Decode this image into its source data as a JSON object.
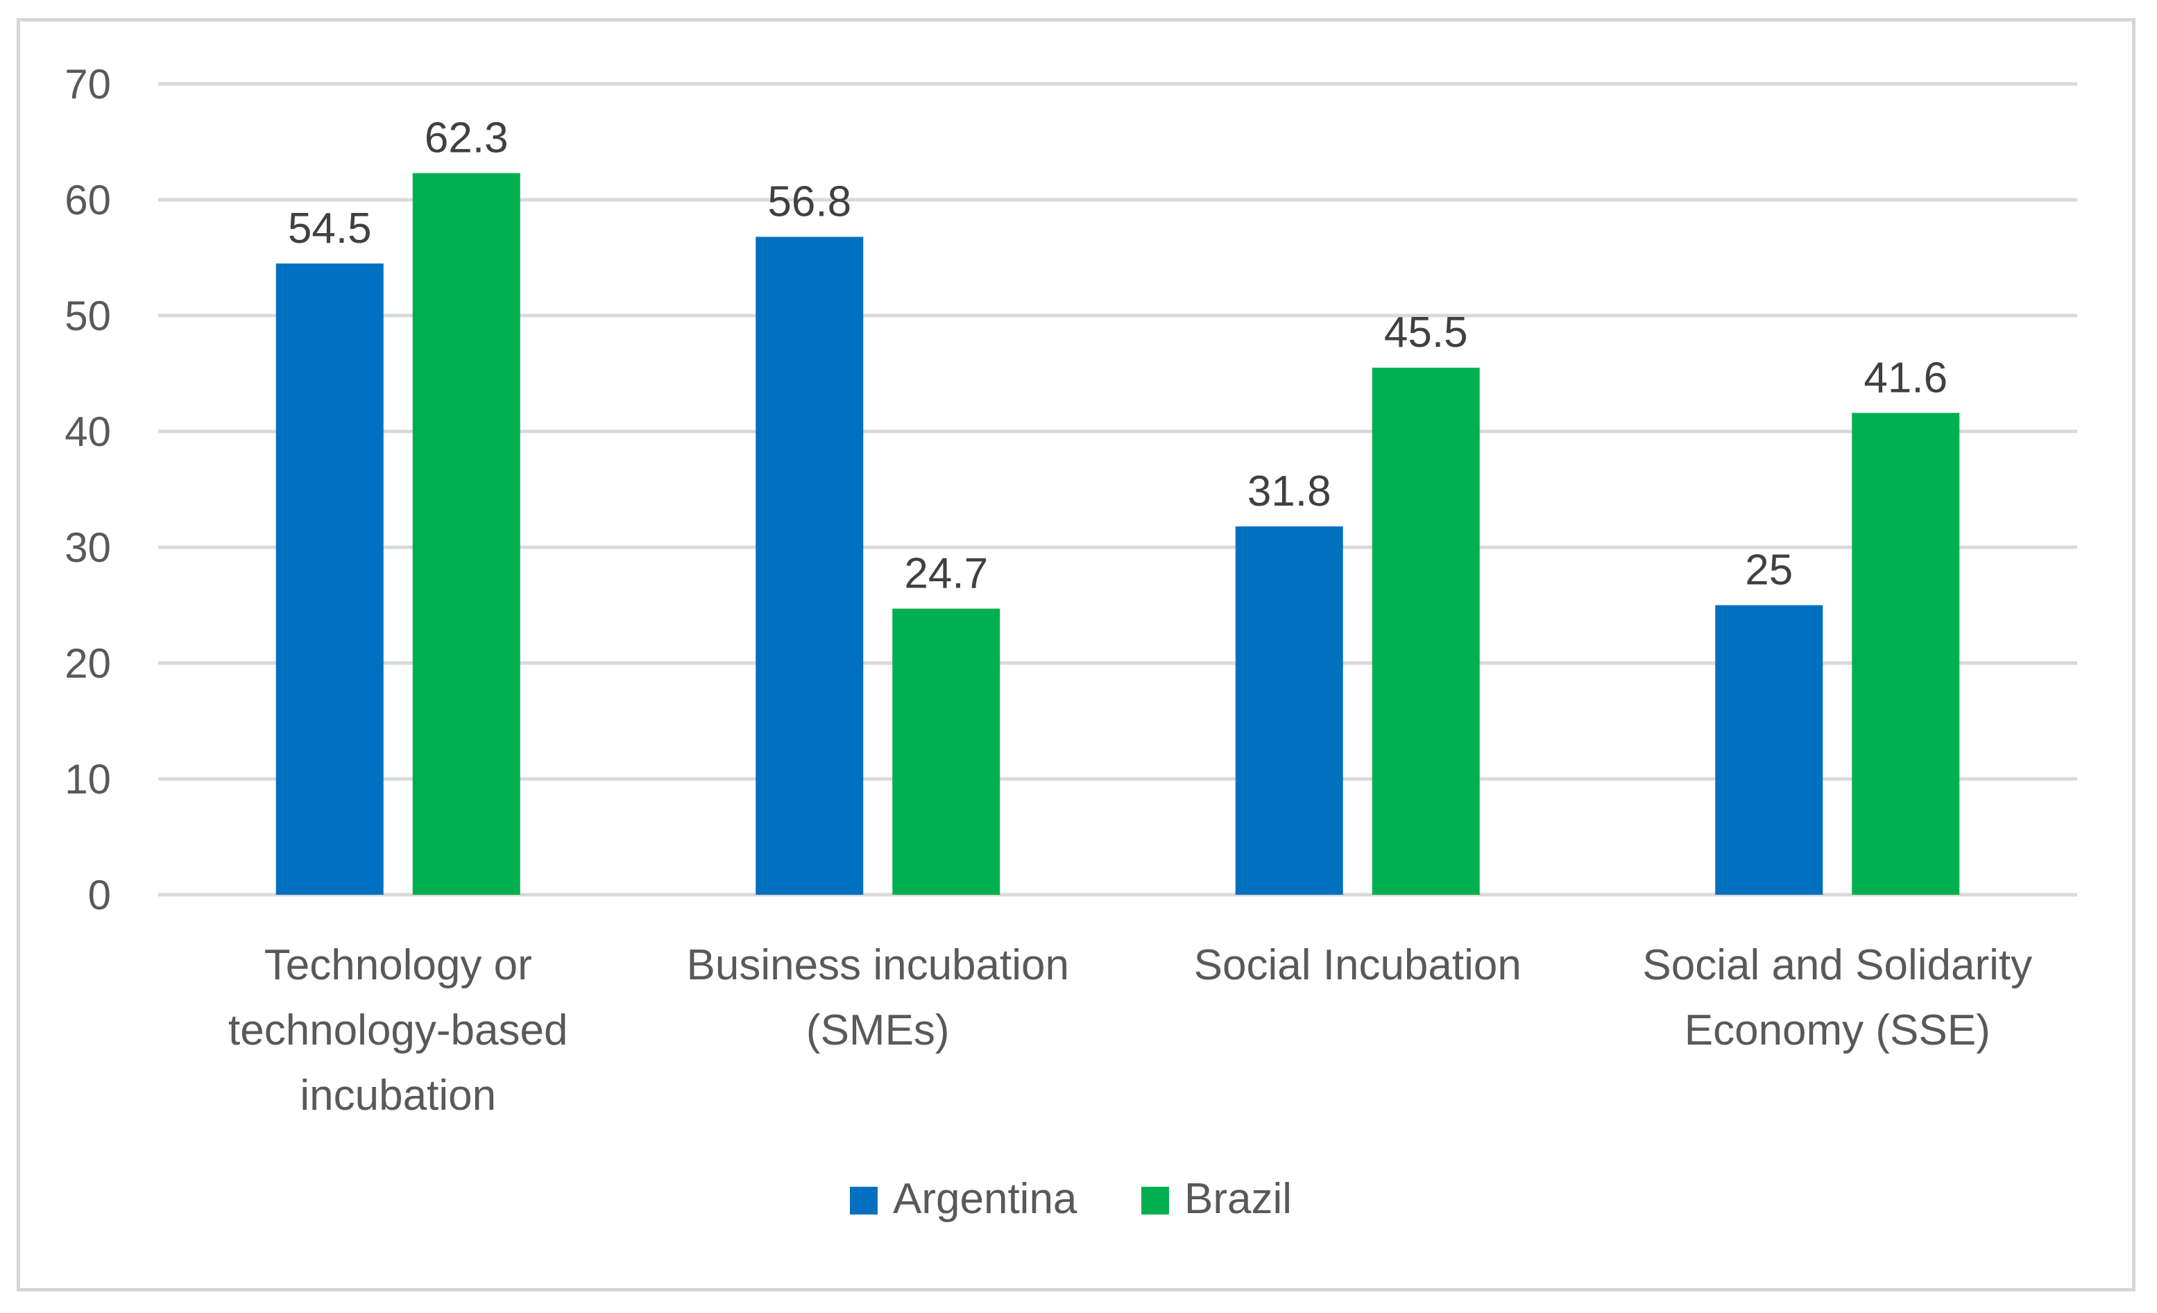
{
  "chart_data": {
    "type": "bar",
    "title": "",
    "xlabel": "",
    "ylabel": "",
    "ylim": [
      0,
      70
    ],
    "yticks": [
      0,
      10,
      20,
      30,
      40,
      50,
      60,
      70
    ],
    "grid": true,
    "legend_position": "bottom",
    "categories": [
      [
        "Technology or",
        "technology-based",
        "incubation"
      ],
      [
        "Business incubation",
        "(SMEs)"
      ],
      [
        "Social Incubation"
      ],
      [
        "Social and Solidarity",
        "Economy (SSE)"
      ]
    ],
    "series": [
      {
        "name": "Argentina",
        "color": "#0070C0",
        "values": [
          54.5,
          56.8,
          31.8,
          25
        ],
        "labels": [
          "54.5",
          "56.8",
          "31.8",
          "25"
        ]
      },
      {
        "name": "Brazil",
        "color": "#00B050",
        "values": [
          62.3,
          24.7,
          45.5,
          41.6
        ],
        "labels": [
          "62.3",
          "24.7",
          "45.5",
          "41.6"
        ]
      }
    ],
    "gridline_color": "#d9d9d9"
  }
}
